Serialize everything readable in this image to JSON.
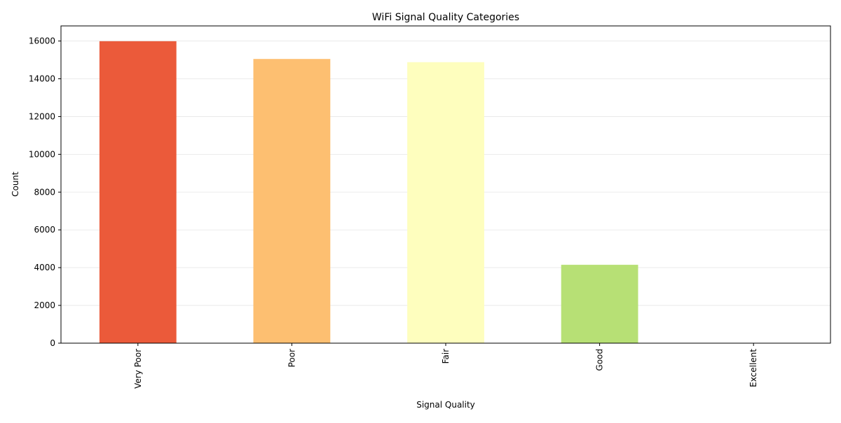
{
  "chart_data": {
    "type": "bar",
    "title": "WiFi Signal Quality Categories",
    "xlabel": "Signal Quality",
    "ylabel": "Count",
    "categories": [
      "Very Poor",
      "Poor",
      "Fair",
      "Good",
      "Excellent"
    ],
    "values": [
      15990,
      15050,
      14880,
      4150,
      0
    ],
    "colors": [
      "#eb5a3a",
      "#fdbf71",
      "#fefebe",
      "#b7e075",
      "#1a9850"
    ],
    "ylim": [
      0,
      16800
    ],
    "yticks": [
      0,
      2000,
      4000,
      6000,
      8000,
      10000,
      12000,
      14000,
      16000
    ],
    "ytick_labels": [
      "0",
      "2000",
      "4000",
      "6000",
      "8000",
      "10000",
      "12000",
      "14000",
      "16000"
    ],
    "x_tick_rotation": "vertical",
    "grid": "y-axis only, light gray",
    "legend": "none"
  }
}
